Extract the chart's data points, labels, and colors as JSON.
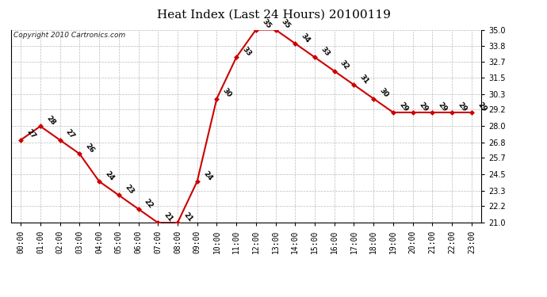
{
  "title": "Heat Index (Last 24 Hours) 20100119",
  "copyright": "Copyright 2010 Cartronics.com",
  "hours": [
    0,
    1,
    2,
    3,
    4,
    5,
    6,
    7,
    8,
    9,
    10,
    11,
    12,
    13,
    14,
    15,
    16,
    17,
    18,
    19,
    20,
    21,
    22,
    23
  ],
  "values": [
    27,
    28,
    27,
    26,
    24,
    23,
    22,
    21,
    21,
    24,
    30,
    33,
    35,
    35,
    34,
    33,
    32,
    31,
    30,
    29,
    29,
    29,
    29,
    29
  ],
  "xlabels": [
    "00:00",
    "01:00",
    "02:00",
    "03:00",
    "04:00",
    "05:00",
    "06:00",
    "07:00",
    "08:00",
    "09:00",
    "10:00",
    "11:00",
    "12:00",
    "13:00",
    "14:00",
    "15:00",
    "16:00",
    "17:00",
    "18:00",
    "19:00",
    "20:00",
    "21:00",
    "22:00",
    "23:00"
  ],
  "ylim": [
    21.0,
    35.0
  ],
  "yticks": [
    21.0,
    22.2,
    23.3,
    24.5,
    25.7,
    26.8,
    28.0,
    29.2,
    30.3,
    31.5,
    32.7,
    33.8,
    35.0
  ],
  "line_color": "#cc0000",
  "marker_color": "#cc0000",
  "background_color": "#ffffff",
  "grid_color": "#bbbbbb",
  "label_color": "#000000",
  "title_fontsize": 11,
  "tick_fontsize": 7,
  "annotation_fontsize": 6.5
}
